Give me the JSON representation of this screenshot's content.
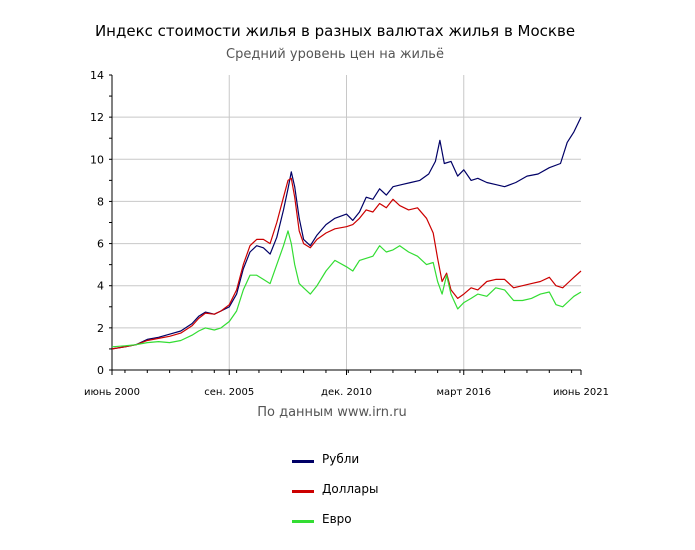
{
  "chart_data": {
    "type": "line",
    "title": "Индекс стоимости жилья в разных валютах жилья в Москве",
    "subtitle": "Средний уровень цен на жильё",
    "source": "По данным www.irn.ru",
    "xlim": [
      2000.42,
      2021.42
    ],
    "ylim": [
      0,
      14
    ],
    "yticks": [
      0,
      2,
      4,
      6,
      8,
      10,
      12,
      14
    ],
    "xticks": [
      {
        "x": 2000.42,
        "label": "июнь 2000"
      },
      {
        "x": 2005.67,
        "label": "сен. 2005"
      },
      {
        "x": 2010.92,
        "label": "дек. 2010"
      },
      {
        "x": 2016.17,
        "label": "март 2016"
      },
      {
        "x": 2021.42,
        "label": "июнь 2021"
      }
    ],
    "grid": true,
    "legend_position": "bottom",
    "series": [
      {
        "name": "Рубли",
        "color": "#000066",
        "points": [
          [
            2000.42,
            1.0
          ],
          [
            2001.0,
            1.1
          ],
          [
            2001.5,
            1.2
          ],
          [
            2002.0,
            1.45
          ],
          [
            2002.5,
            1.55
          ],
          [
            2003.0,
            1.7
          ],
          [
            2003.5,
            1.85
          ],
          [
            2004.0,
            2.2
          ],
          [
            2004.3,
            2.55
          ],
          [
            2004.6,
            2.75
          ],
          [
            2005.0,
            2.65
          ],
          [
            2005.3,
            2.8
          ],
          [
            2005.67,
            3.0
          ],
          [
            2006.0,
            3.6
          ],
          [
            2006.3,
            4.8
          ],
          [
            2006.6,
            5.6
          ],
          [
            2006.9,
            5.9
          ],
          [
            2007.2,
            5.8
          ],
          [
            2007.5,
            5.5
          ],
          [
            2007.8,
            6.3
          ],
          [
            2008.1,
            7.6
          ],
          [
            2008.3,
            8.6
          ],
          [
            2008.45,
            9.4
          ],
          [
            2008.6,
            8.7
          ],
          [
            2008.8,
            7.2
          ],
          [
            2009.0,
            6.2
          ],
          [
            2009.3,
            5.9
          ],
          [
            2009.6,
            6.4
          ],
          [
            2010.0,
            6.9
          ],
          [
            2010.4,
            7.2
          ],
          [
            2010.92,
            7.4
          ],
          [
            2011.2,
            7.1
          ],
          [
            2011.5,
            7.5
          ],
          [
            2011.8,
            8.2
          ],
          [
            2012.1,
            8.1
          ],
          [
            2012.4,
            8.6
          ],
          [
            2012.7,
            8.3
          ],
          [
            2013.0,
            8.7
          ],
          [
            2013.4,
            8.8
          ],
          [
            2013.8,
            8.9
          ],
          [
            2014.2,
            9.0
          ],
          [
            2014.6,
            9.3
          ],
          [
            2014.9,
            9.9
          ],
          [
            2015.1,
            10.9
          ],
          [
            2015.3,
            9.8
          ],
          [
            2015.6,
            9.9
          ],
          [
            2015.9,
            9.2
          ],
          [
            2016.17,
            9.5
          ],
          [
            2016.5,
            9.0
          ],
          [
            2016.8,
            9.1
          ],
          [
            2017.2,
            8.9
          ],
          [
            2017.6,
            8.8
          ],
          [
            2018.0,
            8.7
          ],
          [
            2018.5,
            8.9
          ],
          [
            2019.0,
            9.2
          ],
          [
            2019.5,
            9.3
          ],
          [
            2020.0,
            9.6
          ],
          [
            2020.5,
            9.8
          ],
          [
            2020.8,
            10.8
          ],
          [
            2021.1,
            11.3
          ],
          [
            2021.42,
            12.0
          ]
        ]
      },
      {
        "name": "Доллары",
        "color": "#cc0000",
        "points": [
          [
            2000.42,
            1.0
          ],
          [
            2001.0,
            1.1
          ],
          [
            2001.5,
            1.2
          ],
          [
            2002.0,
            1.4
          ],
          [
            2002.5,
            1.5
          ],
          [
            2003.0,
            1.6
          ],
          [
            2003.5,
            1.75
          ],
          [
            2004.0,
            2.1
          ],
          [
            2004.3,
            2.45
          ],
          [
            2004.6,
            2.7
          ],
          [
            2005.0,
            2.65
          ],
          [
            2005.3,
            2.8
          ],
          [
            2005.67,
            3.1
          ],
          [
            2006.0,
            3.8
          ],
          [
            2006.3,
            5.0
          ],
          [
            2006.6,
            5.9
          ],
          [
            2006.9,
            6.2
          ],
          [
            2007.2,
            6.2
          ],
          [
            2007.5,
            6.0
          ],
          [
            2007.8,
            7.0
          ],
          [
            2008.1,
            8.2
          ],
          [
            2008.3,
            9.0
          ],
          [
            2008.45,
            9.1
          ],
          [
            2008.6,
            8.2
          ],
          [
            2008.8,
            6.6
          ],
          [
            2009.0,
            6.0
          ],
          [
            2009.3,
            5.8
          ],
          [
            2009.6,
            6.2
          ],
          [
            2010.0,
            6.5
          ],
          [
            2010.4,
            6.7
          ],
          [
            2010.92,
            6.8
          ],
          [
            2011.2,
            6.9
          ],
          [
            2011.5,
            7.2
          ],
          [
            2011.8,
            7.6
          ],
          [
            2012.1,
            7.5
          ],
          [
            2012.4,
            7.9
          ],
          [
            2012.7,
            7.7
          ],
          [
            2013.0,
            8.1
          ],
          [
            2013.3,
            7.8
          ],
          [
            2013.7,
            7.6
          ],
          [
            2014.1,
            7.7
          ],
          [
            2014.5,
            7.2
          ],
          [
            2014.8,
            6.5
          ],
          [
            2015.0,
            5.3
          ],
          [
            2015.2,
            4.2
          ],
          [
            2015.4,
            4.6
          ],
          [
            2015.6,
            3.8
          ],
          [
            2015.9,
            3.4
          ],
          [
            2016.17,
            3.6
          ],
          [
            2016.5,
            3.9
          ],
          [
            2016.8,
            3.8
          ],
          [
            2017.2,
            4.2
          ],
          [
            2017.6,
            4.3
          ],
          [
            2018.0,
            4.3
          ],
          [
            2018.4,
            3.9
          ],
          [
            2018.8,
            4.0
          ],
          [
            2019.2,
            4.1
          ],
          [
            2019.6,
            4.2
          ],
          [
            2020.0,
            4.4
          ],
          [
            2020.3,
            4.0
          ],
          [
            2020.6,
            3.9
          ],
          [
            2020.9,
            4.2
          ],
          [
            2021.1,
            4.4
          ],
          [
            2021.42,
            4.7
          ]
        ]
      },
      {
        "name": "Евро",
        "color": "#33dd33",
        "points": [
          [
            2000.42,
            1.1
          ],
          [
            2001.0,
            1.15
          ],
          [
            2001.5,
            1.2
          ],
          [
            2002.0,
            1.3
          ],
          [
            2002.5,
            1.35
          ],
          [
            2003.0,
            1.3
          ],
          [
            2003.5,
            1.4
          ],
          [
            2004.0,
            1.65
          ],
          [
            2004.3,
            1.85
          ],
          [
            2004.6,
            2.0
          ],
          [
            2005.0,
            1.9
          ],
          [
            2005.3,
            2.0
          ],
          [
            2005.67,
            2.3
          ],
          [
            2006.0,
            2.8
          ],
          [
            2006.3,
            3.8
          ],
          [
            2006.6,
            4.5
          ],
          [
            2006.9,
            4.5
          ],
          [
            2007.2,
            4.3
          ],
          [
            2007.5,
            4.1
          ],
          [
            2007.8,
            5.0
          ],
          [
            2008.1,
            5.9
          ],
          [
            2008.3,
            6.6
          ],
          [
            2008.45,
            6.0
          ],
          [
            2008.6,
            5.0
          ],
          [
            2008.8,
            4.1
          ],
          [
            2009.0,
            3.9
          ],
          [
            2009.3,
            3.6
          ],
          [
            2009.6,
            4.0
          ],
          [
            2010.0,
            4.7
          ],
          [
            2010.4,
            5.2
          ],
          [
            2010.92,
            4.9
          ],
          [
            2011.2,
            4.7
          ],
          [
            2011.5,
            5.2
          ],
          [
            2011.8,
            5.3
          ],
          [
            2012.1,
            5.4
          ],
          [
            2012.4,
            5.9
          ],
          [
            2012.7,
            5.6
          ],
          [
            2013.0,
            5.7
          ],
          [
            2013.3,
            5.9
          ],
          [
            2013.7,
            5.6
          ],
          [
            2014.1,
            5.4
          ],
          [
            2014.5,
            5.0
          ],
          [
            2014.8,
            5.1
          ],
          [
            2015.0,
            4.2
          ],
          [
            2015.2,
            3.6
          ],
          [
            2015.4,
            4.5
          ],
          [
            2015.6,
            3.6
          ],
          [
            2015.9,
            2.9
          ],
          [
            2016.17,
            3.2
          ],
          [
            2016.5,
            3.4
          ],
          [
            2016.8,
            3.6
          ],
          [
            2017.2,
            3.5
          ],
          [
            2017.6,
            3.9
          ],
          [
            2018.0,
            3.8
          ],
          [
            2018.4,
            3.3
          ],
          [
            2018.8,
            3.3
          ],
          [
            2019.2,
            3.4
          ],
          [
            2019.6,
            3.6
          ],
          [
            2020.0,
            3.7
          ],
          [
            2020.3,
            3.1
          ],
          [
            2020.6,
            3.0
          ],
          [
            2020.9,
            3.3
          ],
          [
            2021.1,
            3.5
          ],
          [
            2021.42,
            3.7
          ]
        ]
      }
    ]
  }
}
